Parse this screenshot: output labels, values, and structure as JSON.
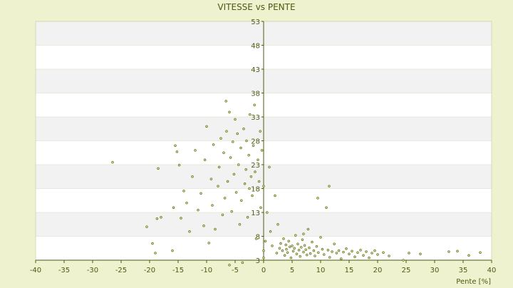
{
  "chart_data": {
    "type": "scatter",
    "title": "VITESSE vs PENTE",
    "xlabel": "Pente [%]",
    "ylabel": "",
    "xlim": [
      -40,
      40
    ],
    "ylim": [
      3,
      53
    ],
    "x_ticks": [
      -40,
      -35,
      -30,
      -25,
      -20,
      -15,
      -10,
      -5,
      0,
      5,
      10,
      15,
      20,
      25,
      30,
      35,
      40
    ],
    "y_ticks": [
      3,
      8,
      13,
      18,
      23,
      28,
      33,
      38,
      43,
      48,
      53
    ],
    "grid": true,
    "colors": {
      "background": "#eef2cf",
      "plot_band_light": "#ffffff",
      "plot_band_dark": "#f2f2f2",
      "marker": "#6b7a12",
      "axis": "#4d5a12"
    },
    "point_estimate_note": "",
    "series": [
      {
        "values": [
          [
            -26.5,
            23.5
          ],
          [
            -20.5,
            10.0
          ],
          [
            -19.5,
            6.5
          ],
          [
            -19.0,
            4.5
          ],
          [
            -18.7,
            11.7
          ],
          [
            -18.5,
            22.2
          ],
          [
            -18.0,
            12.0
          ],
          [
            -16.0,
            5.0
          ],
          [
            -15.8,
            14.0
          ],
          [
            -15.5,
            27.0
          ],
          [
            -15.2,
            25.7
          ],
          [
            -14.8,
            22.9
          ],
          [
            -14.5,
            11.8
          ],
          [
            -14.0,
            17.5
          ],
          [
            -13.5,
            15.0
          ],
          [
            -13.0,
            9.0
          ],
          [
            -12.5,
            20.5
          ],
          [
            -12.0,
            26.0
          ],
          [
            -11.5,
            13.5
          ],
          [
            -11.0,
            17.0
          ],
          [
            -10.5,
            10.2
          ],
          [
            -10.3,
            24.0
          ],
          [
            -10.0,
            31.0
          ],
          [
            -9.6,
            6.6
          ],
          [
            -9.2,
            20.0
          ],
          [
            -9.0,
            14.5
          ],
          [
            -8.8,
            27.2
          ],
          [
            -8.5,
            9.5
          ],
          [
            -8.0,
            18.5
          ],
          [
            -7.8,
            22.5
          ],
          [
            -7.5,
            28.5
          ],
          [
            -7.2,
            12.5
          ],
          [
            -7.0,
            25.5
          ],
          [
            -6.8,
            16.0
          ],
          [
            -6.6,
            36.3
          ],
          [
            -6.5,
            30.0
          ],
          [
            -6.3,
            19.5
          ],
          [
            -6.0,
            34.0
          ],
          [
            -6.0,
            2.0
          ],
          [
            -5.8,
            24.5
          ],
          [
            -5.6,
            13.2
          ],
          [
            -5.4,
            27.8
          ],
          [
            -5.2,
            21.0
          ],
          [
            -5.0,
            32.5
          ],
          [
            -4.8,
            17.2
          ],
          [
            -4.6,
            29.5
          ],
          [
            -4.4,
            23.0
          ],
          [
            -4.2,
            10.5
          ],
          [
            -4.0,
            26.5
          ],
          [
            -3.9,
            15.5
          ],
          [
            -3.7,
            2.5
          ],
          [
            -3.5,
            30.5
          ],
          [
            -3.3,
            19.0
          ],
          [
            -3.1,
            22.0
          ],
          [
            -3.0,
            28.0
          ],
          [
            -2.8,
            12.0
          ],
          [
            -2.6,
            25.0
          ],
          [
            -2.5,
            18.0
          ],
          [
            -2.4,
            33.5
          ],
          [
            -2.2,
            20.5
          ],
          [
            -2.0,
            16.5
          ],
          [
            -1.8,
            27.0
          ],
          [
            -1.6,
            35.5
          ],
          [
            -1.5,
            21.5
          ],
          [
            -1.3,
            7.5
          ],
          [
            -1.0,
            24.0
          ],
          [
            -0.8,
            19.5
          ],
          [
            -0.6,
            30.0
          ],
          [
            -0.5,
            14.0
          ],
          [
            -0.3,
            26.0
          ],
          [
            0.0,
            18.5
          ],
          [
            0.0,
            5.0
          ],
          [
            0.0,
            3.5
          ],
          [
            0.3,
            7.0
          ],
          [
            0.6,
            13.0
          ],
          [
            1.0,
            22.5
          ],
          [
            1.2,
            9.0
          ],
          [
            1.5,
            6.0
          ],
          [
            2.0,
            16.5
          ],
          [
            2.3,
            4.5
          ],
          [
            2.5,
            10.5
          ],
          [
            2.8,
            5.5
          ],
          [
            3.0,
            6.5
          ],
          [
            3.3,
            5.0
          ],
          [
            3.5,
            7.5
          ],
          [
            3.7,
            4.0
          ],
          [
            3.9,
            6.2
          ],
          [
            4.0,
            5.3
          ],
          [
            4.2,
            4.6
          ],
          [
            4.4,
            7.0
          ],
          [
            4.6,
            5.8
          ],
          [
            4.8,
            3.5
          ],
          [
            5.0,
            6.0
          ],
          [
            5.2,
            4.9
          ],
          [
            5.4,
            5.5
          ],
          [
            5.6,
            8.2
          ],
          [
            5.8,
            4.3
          ],
          [
            6.0,
            6.4
          ],
          [
            6.2,
            5.1
          ],
          [
            6.4,
            3.8
          ],
          [
            6.6,
            5.7
          ],
          [
            6.8,
            7.3
          ],
          [
            7.0,
            4.7
          ],
          [
            7.2,
            6.1
          ],
          [
            7.4,
            5.2
          ],
          [
            7.6,
            4.1
          ],
          [
            7.8,
            9.5
          ],
          [
            8.0,
            5.6
          ],
          [
            8.2,
            4.4
          ],
          [
            8.5,
            6.8
          ],
          [
            8.8,
            5.0
          ],
          [
            9.0,
            3.9
          ],
          [
            9.3,
            5.9
          ],
          [
            9.6,
            4.6
          ],
          [
            10.0,
            7.8
          ],
          [
            10.3,
            5.3
          ],
          [
            10.6,
            4.2
          ],
          [
            11.0,
            14.0
          ],
          [
            11.3,
            5.1
          ],
          [
            11.6,
            3.6
          ],
          [
            12.0,
            4.8
          ],
          [
            12.4,
            6.4
          ],
          [
            12.8,
            4.5
          ],
          [
            13.2,
            5.0
          ],
          [
            13.6,
            3.3
          ],
          [
            14.0,
            4.7
          ],
          [
            14.5,
            5.4
          ],
          [
            15.0,
            4.3
          ],
          [
            15.5,
            4.9
          ],
          [
            16.0,
            3.7
          ],
          [
            16.5,
            4.6
          ],
          [
            17.0,
            5.1
          ],
          [
            17.5,
            4.0
          ],
          [
            18.0,
            4.8
          ],
          [
            18.5,
            3.5
          ],
          [
            19.0,
            4.5
          ],
          [
            19.5,
            5.0
          ],
          [
            20.0,
            4.2
          ],
          [
            21.0,
            4.6
          ],
          [
            22.0,
            3.9
          ],
          [
            24.5,
            3.0
          ],
          [
            25.5,
            4.5
          ],
          [
            27.5,
            4.3
          ],
          [
            32.5,
            4.8
          ],
          [
            34.0,
            4.9
          ],
          [
            36.0,
            4.0
          ],
          [
            38.0,
            4.6
          ],
          [
            11.5,
            18.5
          ],
          [
            9.5,
            16.0
          ],
          [
            7.0,
            8.5
          ]
        ]
      }
    ]
  }
}
